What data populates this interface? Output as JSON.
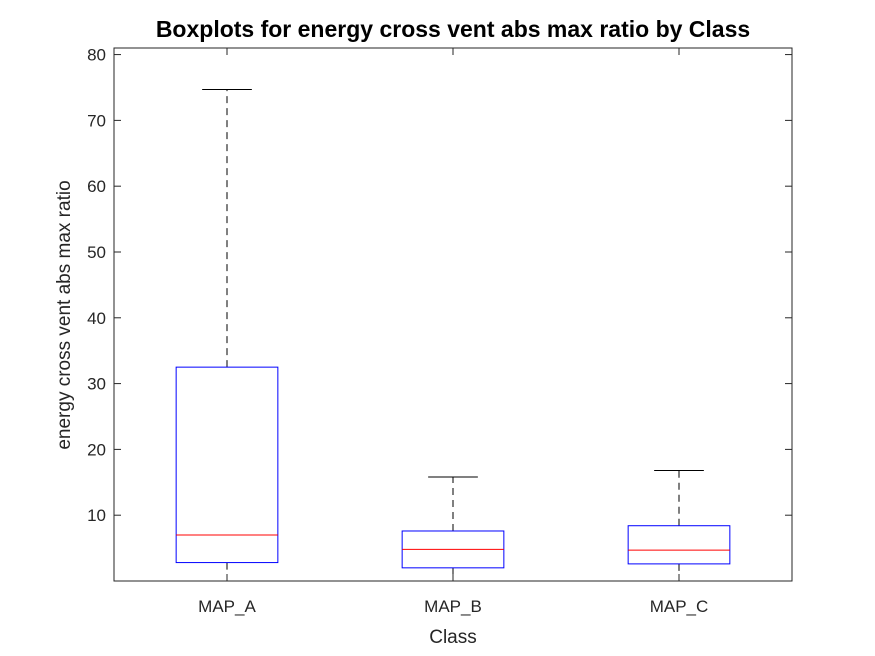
{
  "chart_data": {
    "type": "boxplot",
    "title": "Boxplots for energy cross vent abs max ratio by Class",
    "xlabel": "Class",
    "ylabel": "energy cross vent abs max ratio",
    "categories": [
      "MAP_A",
      "MAP_B",
      "MAP_C"
    ],
    "boxes": [
      {
        "label": "MAP_A",
        "whisker_low": 0,
        "q1": 2.8,
        "median": 7.0,
        "q3": 32.5,
        "whisker_high": 74.7
      },
      {
        "label": "MAP_B",
        "whisker_low": 0,
        "q1": 2.0,
        "median": 4.8,
        "q3": 7.6,
        "whisker_high": 15.8
      },
      {
        "label": "MAP_C",
        "whisker_low": 0,
        "q1": 2.6,
        "median": 4.7,
        "q3": 8.4,
        "whisker_high": 16.8
      }
    ],
    "yticks": [
      10,
      20,
      30,
      40,
      50,
      60,
      70,
      80
    ],
    "ylim": [
      0,
      81
    ],
    "grid": false,
    "colors": {
      "box": "#0000ff",
      "median": "#ff0000",
      "whisker": "#000000",
      "axes": "#262626"
    }
  }
}
